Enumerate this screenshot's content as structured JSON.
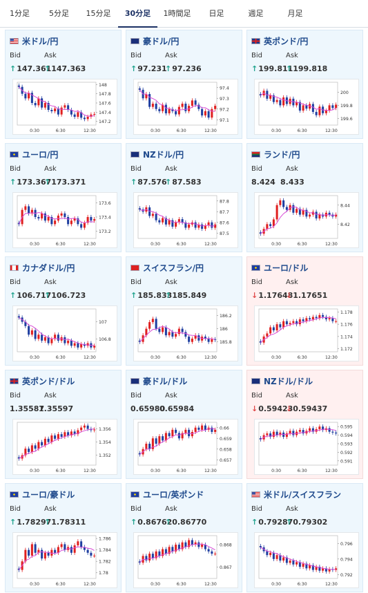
{
  "tabs": [
    {
      "label": "1分足"
    },
    {
      "label": "5分足"
    },
    {
      "label": "15分足"
    },
    {
      "label": "30分足"
    },
    {
      "label": "1時間足"
    },
    {
      "label": "日足"
    },
    {
      "label": "週足"
    },
    {
      "label": "月足"
    }
  ],
  "active_tab": "30分足",
  "labels": {
    "bid": "Bid",
    "ask": "Ask"
  },
  "colors": {
    "up": "#23a48f",
    "down": "#e04848",
    "candle_up": "#e02020",
    "candle_down": "#1f3ea0",
    "ma": "#d94ad6"
  },
  "x_ticks": [
    "0:30",
    "6:30",
    "12:30"
  ],
  "cards": [
    {
      "pair": "米ドル/円",
      "flag": "us",
      "bid": "147.361",
      "ask": "147.363",
      "bid_dir": "up",
      "ask_dir": "up",
      "trend": "down",
      "chart_data": {
        "type": "candlestick",
        "y_ticks": [
          "148",
          "147.8",
          "147.6",
          "147.4",
          "147.2"
        ],
        "ylim": [
          147.12,
          148.05
        ],
        "close": [
          147.95,
          147.8,
          147.7,
          147.82,
          147.6,
          147.55,
          147.7,
          147.5,
          147.6,
          147.45,
          147.42,
          147.48,
          147.35,
          147.5,
          147.55,
          147.45,
          147.35,
          147.3,
          147.4,
          147.28,
          147.25,
          147.3,
          147.35,
          147.36
        ]
      }
    },
    {
      "pair": "豪ドル/円",
      "flag": "au",
      "bid": "97.231",
      "ask": "97.236",
      "bid_dir": "up",
      "ask_dir": "up",
      "trend": "down",
      "chart_data": {
        "type": "candlestick",
        "y_ticks": [
          "97.4",
          "97.3",
          "97.2",
          "97.1"
        ],
        "ylim": [
          97.05,
          97.45
        ],
        "close": [
          97.38,
          97.3,
          97.34,
          97.22,
          97.25,
          97.2,
          97.18,
          97.24,
          97.16,
          97.2,
          97.18,
          97.15,
          97.22,
          97.25,
          97.18,
          97.23,
          97.28,
          97.24,
          97.2,
          97.14,
          97.18,
          97.12,
          97.2,
          97.23
        ]
      }
    },
    {
      "pair": "英ポンド/円",
      "flag": "gb",
      "bid": "199.811",
      "ask": "199.818",
      "bid_dir": "up",
      "ask_dir": "up",
      "trend": "down",
      "chart_data": {
        "type": "candlestick",
        "y_ticks": [
          "200",
          "199.8",
          "199.6"
        ],
        "ylim": [
          199.5,
          200.15
        ],
        "close": [
          199.95,
          200.02,
          199.9,
          199.95,
          199.85,
          199.88,
          199.8,
          199.92,
          199.82,
          199.9,
          199.8,
          199.85,
          199.72,
          199.8,
          199.75,
          199.82,
          199.7,
          199.65,
          199.78,
          199.68,
          199.72,
          199.8,
          199.76,
          199.81
        ]
      }
    },
    {
      "pair": "ユーロ/円",
      "flag": "eu",
      "bid": "173.367",
      "ask": "173.371",
      "bid_dir": "up",
      "ask_dir": "up",
      "trend": "flat",
      "chart_data": {
        "type": "candlestick",
        "y_ticks": [
          "173.6",
          "173.4",
          "173.2"
        ],
        "ylim": [
          173.1,
          173.7
        ],
        "close": [
          173.3,
          173.5,
          173.55,
          173.45,
          173.5,
          173.4,
          173.38,
          173.45,
          173.35,
          173.4,
          173.3,
          173.35,
          173.42,
          173.45,
          173.4,
          173.3,
          173.35,
          173.38,
          173.3,
          173.25,
          173.32,
          173.4,
          173.35,
          173.37
        ]
      }
    },
    {
      "pair": "NZドル/円",
      "flag": "nz",
      "bid": "87.576",
      "ask": "87.583",
      "bid_dir": "up",
      "ask_dir": "up",
      "trend": "flat",
      "chart_data": {
        "type": "candlestick",
        "y_ticks": [
          "87.8",
          "87.7",
          "87.6",
          "87.5"
        ],
        "ylim": [
          87.45,
          87.85
        ],
        "close": [
          87.72,
          87.7,
          87.74,
          87.66,
          87.68,
          87.62,
          87.6,
          87.64,
          87.58,
          87.62,
          87.56,
          87.6,
          87.63,
          87.6,
          87.55,
          87.58,
          87.6,
          87.55,
          87.58,
          87.54,
          87.57,
          87.6,
          87.55,
          87.58
        ]
      }
    },
    {
      "pair": "ランド/円",
      "flag": "za",
      "bid": "8.424",
      "ask": "8.433",
      "bid_dir": "",
      "ask_dir": "",
      "trend": "up",
      "chart_data": {
        "type": "candlestick",
        "y_ticks": [
          "8.44",
          "8.42"
        ],
        "ylim": [
          8.405,
          8.45
        ],
        "close": [
          8.41,
          8.415,
          8.42,
          8.418,
          8.425,
          8.44,
          8.445,
          8.438,
          8.435,
          8.44,
          8.432,
          8.436,
          8.43,
          8.435,
          8.428,
          8.43,
          8.433,
          8.426,
          8.43,
          8.428,
          8.432,
          8.43,
          8.428,
          8.43
        ]
      }
    },
    {
      "pair": "カナダドル/円",
      "flag": "ca",
      "bid": "106.717",
      "ask": "106.723",
      "bid_dir": "up",
      "ask_dir": "up",
      "trend": "down",
      "chart_data": {
        "type": "candlestick",
        "y_ticks": [
          "107",
          "106.8"
        ],
        "ylim": [
          106.65,
          107.15
        ],
        "close": [
          107.05,
          107.0,
          106.95,
          106.85,
          106.9,
          106.8,
          106.85,
          106.78,
          106.82,
          106.75,
          106.8,
          106.85,
          106.78,
          106.82,
          106.75,
          106.78,
          106.72,
          106.75,
          106.7,
          106.74,
          106.72,
          106.75,
          106.7,
          106.72
        ]
      }
    },
    {
      "pair": "スイスフラン/円",
      "flag": "ch",
      "bid": "185.833",
      "ask": "185.849",
      "bid_dir": "up",
      "ask_dir": "up",
      "trend": "up",
      "chart_data": {
        "type": "candlestick",
        "y_ticks": [
          "186.2",
          "186",
          "185.8"
        ],
        "ylim": [
          185.65,
          186.3
        ],
        "close": [
          185.8,
          185.9,
          186.0,
          186.1,
          186.15,
          186.0,
          185.95,
          186.02,
          185.9,
          185.95,
          185.88,
          185.92,
          186.0,
          185.95,
          185.88,
          185.8,
          185.85,
          185.9,
          185.82,
          185.88,
          185.85,
          185.8,
          185.84,
          185.83
        ]
      }
    },
    {
      "pair": "ユーロ/ドル",
      "flag": "eu",
      "bid": "1.17648",
      "ask": "1.17651",
      "bid_dir": "down",
      "ask_dir": "down",
      "down_card": true,
      "trend": "up",
      "chart_data": {
        "type": "candlestick",
        "y_ticks": [
          "1.178",
          "1.176",
          "1.174",
          "1.172"
        ],
        "ylim": [
          1.1715,
          1.1785
        ],
        "close": [
          1.173,
          1.174,
          1.1745,
          1.1755,
          1.175,
          1.176,
          1.1755,
          1.1765,
          1.176,
          1.1762,
          1.1765,
          1.176,
          1.1768,
          1.1765,
          1.177,
          1.1768,
          1.1772,
          1.177,
          1.1775,
          1.1772,
          1.1768,
          1.177,
          1.1765,
          1.1765
        ]
      }
    },
    {
      "pair": "英ポンド/ドル",
      "flag": "gb",
      "bid": "1.35587",
      "ask": "1.35597",
      "bid_dir": "",
      "ask_dir": "",
      "trend": "up",
      "chart_data": {
        "type": "candlestick",
        "y_ticks": [
          "1.356",
          "1.354",
          "1.352"
        ],
        "ylim": [
          1.3505,
          1.357
        ],
        "close": [
          1.3515,
          1.352,
          1.353,
          1.3525,
          1.3535,
          1.353,
          1.354,
          1.3535,
          1.3545,
          1.354,
          1.355,
          1.3545,
          1.3552,
          1.3548,
          1.3555,
          1.355,
          1.3556,
          1.3552,
          1.3558,
          1.3562,
          1.3565,
          1.356,
          1.3558,
          1.3559
        ]
      }
    },
    {
      "pair": "豪ドル/ドル",
      "flag": "au",
      "bid": "0.65980",
      "ask": "0.65984",
      "bid_dir": "",
      "ask_dir": "",
      "trend": "up",
      "chart_data": {
        "type": "candlestick",
        "y_ticks": [
          "0.66",
          "0.659",
          "0.658",
          "0.657"
        ],
        "ylim": [
          0.6565,
          0.6605
        ],
        "close": [
          0.6575,
          0.658,
          0.6585,
          0.658,
          0.659,
          0.6585,
          0.6592,
          0.6588,
          0.6595,
          0.6592,
          0.6598,
          0.6595,
          0.659,
          0.6595,
          0.6598,
          0.6592,
          0.6596,
          0.66,
          0.6598,
          0.6602,
          0.6598,
          0.66,
          0.6596,
          0.6598
        ]
      }
    },
    {
      "pair": "NZドル/ドル",
      "flag": "nz",
      "bid": "0.59423",
      "ask": "0.59437",
      "bid_dir": "down",
      "ask_dir": "down",
      "down_card": true,
      "trend": "up",
      "chart_data": {
        "type": "candlestick",
        "y_ticks": [
          "0.595",
          "0.594",
          "0.593",
          "0.592",
          "0.591"
        ],
        "ylim": [
          0.5905,
          0.5955
        ],
        "close": [
          0.5935,
          0.594,
          0.5942,
          0.5938,
          0.5944,
          0.594,
          0.5943,
          0.5938,
          0.5942,
          0.5945,
          0.594,
          0.5944,
          0.5946,
          0.5942,
          0.5945,
          0.5948,
          0.5944,
          0.5947,
          0.595,
          0.5946,
          0.5948,
          0.5944,
          0.5943,
          0.5942
        ]
      }
    },
    {
      "pair": "ユーロ/豪ドル",
      "flag": "eu",
      "bid": "1.78297",
      "ask": "1.78311",
      "bid_dir": "up",
      "ask_dir": "up",
      "trend": "flat",
      "chart_data": {
        "type": "candlestick",
        "y_ticks": [
          "1.786",
          "1.784",
          "1.782",
          "1.78"
        ],
        "ylim": [
          1.779,
          1.7865
        ],
        "close": [
          1.7805,
          1.782,
          1.784,
          1.783,
          1.785,
          1.7835,
          1.784,
          1.7825,
          1.7835,
          1.783,
          1.784,
          1.7835,
          1.7845,
          1.785,
          1.784,
          1.7845,
          1.7835,
          1.7848,
          1.7855,
          1.7845,
          1.784,
          1.7835,
          1.783,
          1.783
        ]
      }
    },
    {
      "pair": "ユーロ/英ポンド",
      "flag": "eu",
      "bid": "0.86762",
      "ask": "0.86770",
      "bid_dir": "up",
      "ask_dir": "up",
      "trend": "up",
      "chart_data": {
        "type": "candlestick",
        "y_ticks": [
          "0.868",
          "0.867"
        ],
        "ylim": [
          0.8665,
          0.8684
        ],
        "close": [
          0.8672,
          0.8675,
          0.8673,
          0.8676,
          0.8674,
          0.8677,
          0.8675,
          0.8678,
          0.8676,
          0.8679,
          0.8677,
          0.868,
          0.8678,
          0.8681,
          0.8679,
          0.8682,
          0.868,
          0.8681,
          0.8679,
          0.868,
          0.8678,
          0.8677,
          0.8676,
          0.8676
        ]
      }
    },
    {
      "pair": "米ドル/スイスフラン",
      "flag": "us",
      "bid": "0.79287",
      "ask": "0.79302",
      "bid_dir": "up",
      "ask_dir": "up",
      "trend": "down",
      "chart_data": {
        "type": "candlestick",
        "y_ticks": [
          "0.796",
          "0.794",
          "0.792"
        ],
        "ylim": [
          0.7915,
          0.797
        ],
        "close": [
          0.7955,
          0.795,
          0.7945,
          0.7948,
          0.794,
          0.7945,
          0.7938,
          0.7942,
          0.7935,
          0.7938,
          0.7933,
          0.7936,
          0.793,
          0.7934,
          0.7928,
          0.7932,
          0.7926,
          0.793,
          0.7925,
          0.7928,
          0.7924,
          0.7927,
          0.7926,
          0.7928
        ]
      }
    }
  ]
}
